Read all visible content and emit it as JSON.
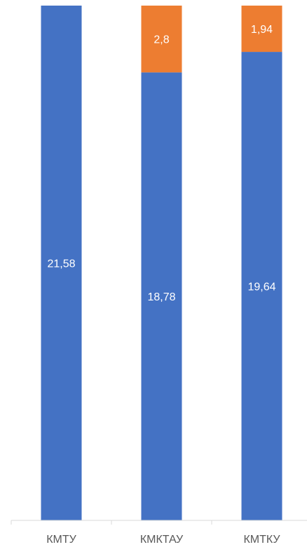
{
  "chart_data": {
    "type": "bar",
    "stacked": true,
    "categories": [
      "КМТУ",
      "КМКТАУ",
      "КМТКУ"
    ],
    "series": [
      {
        "values": [
          21.58,
          18.78,
          19.64
        ],
        "labels": [
          "21,58",
          "18,78",
          "19,64"
        ],
        "color": "#4472C4"
      },
      {
        "values": [
          0,
          2.8,
          1.94
        ],
        "labels": [
          "",
          "2,8",
          "1,94"
        ],
        "color": "#ED7D31"
      }
    ],
    "ylim": [
      0,
      21.58
    ],
    "grid": false,
    "legend": "none"
  }
}
